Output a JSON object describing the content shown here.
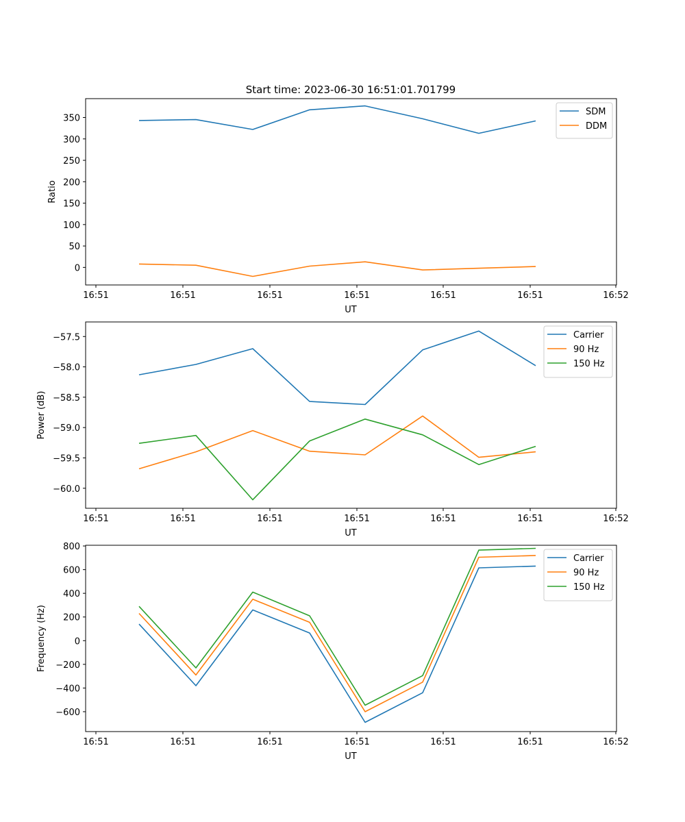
{
  "figure_title": "Start time: 2023-06-30 16:51:01.701799",
  "colors": {
    "blue": "#1f77b4",
    "orange": "#ff7f0e",
    "green": "#2ca02c"
  },
  "chart_data": [
    {
      "type": "line",
      "title": "Start time: 2023-06-30 16:51:01.701799",
      "xlabel": "UT",
      "ylabel": "Ratio",
      "x_ticks": [
        "16:51",
        "16:51",
        "16:51",
        "16:51",
        "16:51",
        "16:51",
        "16:52"
      ],
      "y_ticks": [
        "0",
        "50",
        "100",
        "150",
        "200",
        "250",
        "300",
        "350"
      ],
      "ylim": [
        -41,
        394
      ],
      "grid": false,
      "legend_position": "top-right",
      "series": [
        {
          "name": "SDM",
          "color": "#1f77b4",
          "values": [
            343,
            345,
            322,
            368,
            377,
            347,
            313,
            342
          ]
        },
        {
          "name": "DDM",
          "color": "#ff7f0e",
          "values": [
            8,
            5,
            -21,
            3,
            13,
            -6,
            -2,
            2
          ]
        }
      ]
    },
    {
      "type": "line",
      "title": "",
      "xlabel": "UT",
      "ylabel": "Power (dB)",
      "x_ticks": [
        "16:51",
        "16:51",
        "16:51",
        "16:51",
        "16:51",
        "16:51",
        "16:52"
      ],
      "y_ticks": [
        "−60.0",
        "−59.5",
        "−59.0",
        "−58.5",
        "−58.0",
        "−57.5"
      ],
      "y_tick_values": [
        -60.0,
        -59.5,
        -59.0,
        -58.5,
        -58.0,
        -57.5
      ],
      "ylim": [
        -60.33,
        -57.26
      ],
      "grid": false,
      "legend_position": "top-right",
      "series": [
        {
          "name": "Carrier",
          "color": "#1f77b4",
          "values": [
            -58.13,
            -57.96,
            -57.7,
            -58.57,
            -58.62,
            -57.72,
            -57.41,
            -57.98
          ]
        },
        {
          "name": "90 Hz",
          "color": "#ff7f0e",
          "values": [
            -59.68,
            -59.4,
            -59.05,
            -59.39,
            -59.45,
            -58.81,
            -59.49,
            -59.4
          ]
        },
        {
          "name": "150 Hz",
          "color": "#2ca02c",
          "values": [
            -59.26,
            -59.13,
            -60.19,
            -59.22,
            -58.86,
            -59.12,
            -59.61,
            -59.31
          ]
        }
      ]
    },
    {
      "type": "line",
      "title": "",
      "xlabel": "UT",
      "ylabel": "Frequency (Hz)",
      "x_ticks": [
        "16:51",
        "16:51",
        "16:51",
        "16:51",
        "16:51",
        "16:51",
        "16:52"
      ],
      "y_ticks": [
        "−600",
        "−400",
        "−200",
        "0",
        "200",
        "400",
        "600",
        "800"
      ],
      "y_tick_values": [
        -600,
        -400,
        -200,
        0,
        200,
        400,
        600,
        800
      ],
      "ylim": [
        -768,
        806
      ],
      "grid": false,
      "legend_position": "top-right",
      "series": [
        {
          "name": "Carrier",
          "color": "#1f77b4",
          "values": [
            140,
            -380,
            260,
            65,
            -690,
            -440,
            615,
            630
          ]
        },
        {
          "name": "90 Hz",
          "color": "#ff7f0e",
          "values": [
            230,
            -290,
            350,
            155,
            -600,
            -350,
            705,
            720
          ]
        },
        {
          "name": "150 Hz",
          "color": "#2ca02c",
          "values": [
            290,
            -230,
            410,
            210,
            -545,
            -295,
            765,
            780
          ]
        }
      ]
    }
  ]
}
